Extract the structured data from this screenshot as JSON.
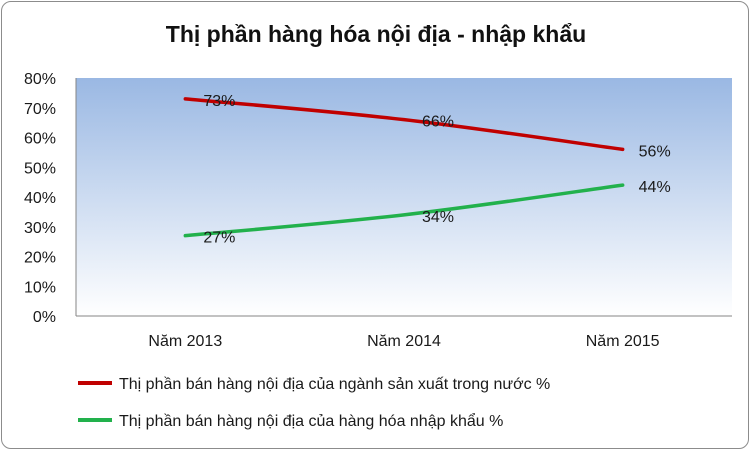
{
  "chart_data": {
    "type": "line",
    "title": "Thị phần hàng hóa nội địa - nhập khẩu",
    "categories": [
      "Năm 2013",
      "Năm 2014",
      "Năm 2015"
    ],
    "ylim": [
      0,
      80
    ],
    "yticks": [
      "0%",
      "10%",
      "20%",
      "30%",
      "40%",
      "50%",
      "60%",
      "70%",
      "80%"
    ],
    "yunit": "%",
    "grid": false,
    "legend_position": "bottom",
    "plot_background": "gradient light blue",
    "series": [
      {
        "name": "Thị phần bán hàng nội địa của ngành sản xuất trong nước %",
        "values": [
          73,
          66,
          56
        ],
        "labels": [
          "73%",
          "66%",
          "56%"
        ],
        "color": "#c00000"
      },
      {
        "name": "Thị phần bán hàng nội địa của hàng hóa nhập khẩu %",
        "values": [
          27,
          34,
          44
        ],
        "labels": [
          "27%",
          "34%",
          "44%"
        ],
        "color": "#22b14c"
      }
    ]
  }
}
